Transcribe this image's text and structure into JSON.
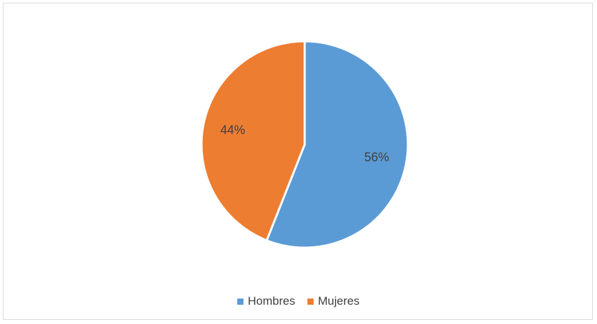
{
  "chart_data": {
    "type": "pie",
    "categories": [
      "Hombres",
      "Mujeres"
    ],
    "values": [
      56,
      44
    ],
    "value_labels": [
      "56%",
      "44%"
    ],
    "colors": [
      "#5B9BD5",
      "#ED7D31"
    ],
    "legend_position": "bottom",
    "start_angle": "12 o'clock",
    "direction": "clockwise"
  }
}
